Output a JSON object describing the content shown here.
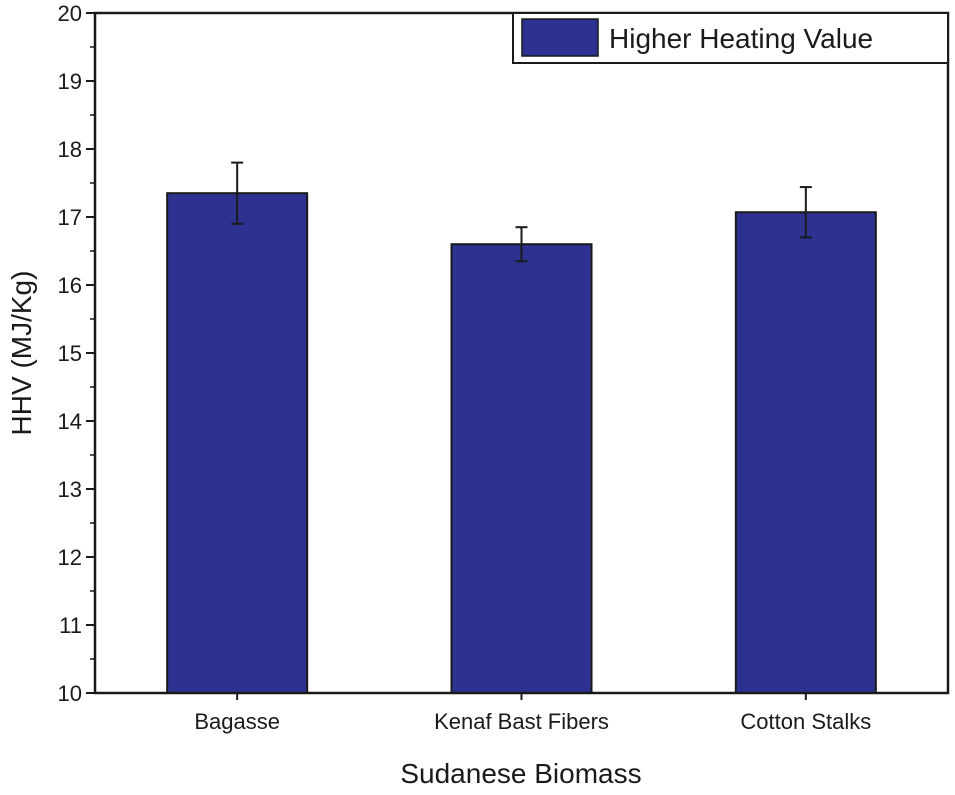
{
  "chart_data": {
    "type": "bar",
    "title": "",
    "xlabel": "Sudanese Biomass",
    "ylabel": "HHV (MJ/Kg)",
    "categories": [
      "Bagasse",
      "Kenaf Bast Fibers",
      "Cotton Stalks"
    ],
    "series": [
      {
        "name": "Higher Heating Value",
        "values": [
          17.35,
          16.6,
          17.07
        ],
        "error": [
          0.45,
          0.25,
          0.37
        ],
        "color": "#2d3190"
      }
    ],
    "ylim": [
      10,
      20
    ],
    "yticks": [
      "10",
      "11",
      "12",
      "13",
      "14",
      "15",
      "16",
      "17",
      "18",
      "19",
      "20"
    ],
    "grid": false,
    "legend_position": "top-right"
  }
}
